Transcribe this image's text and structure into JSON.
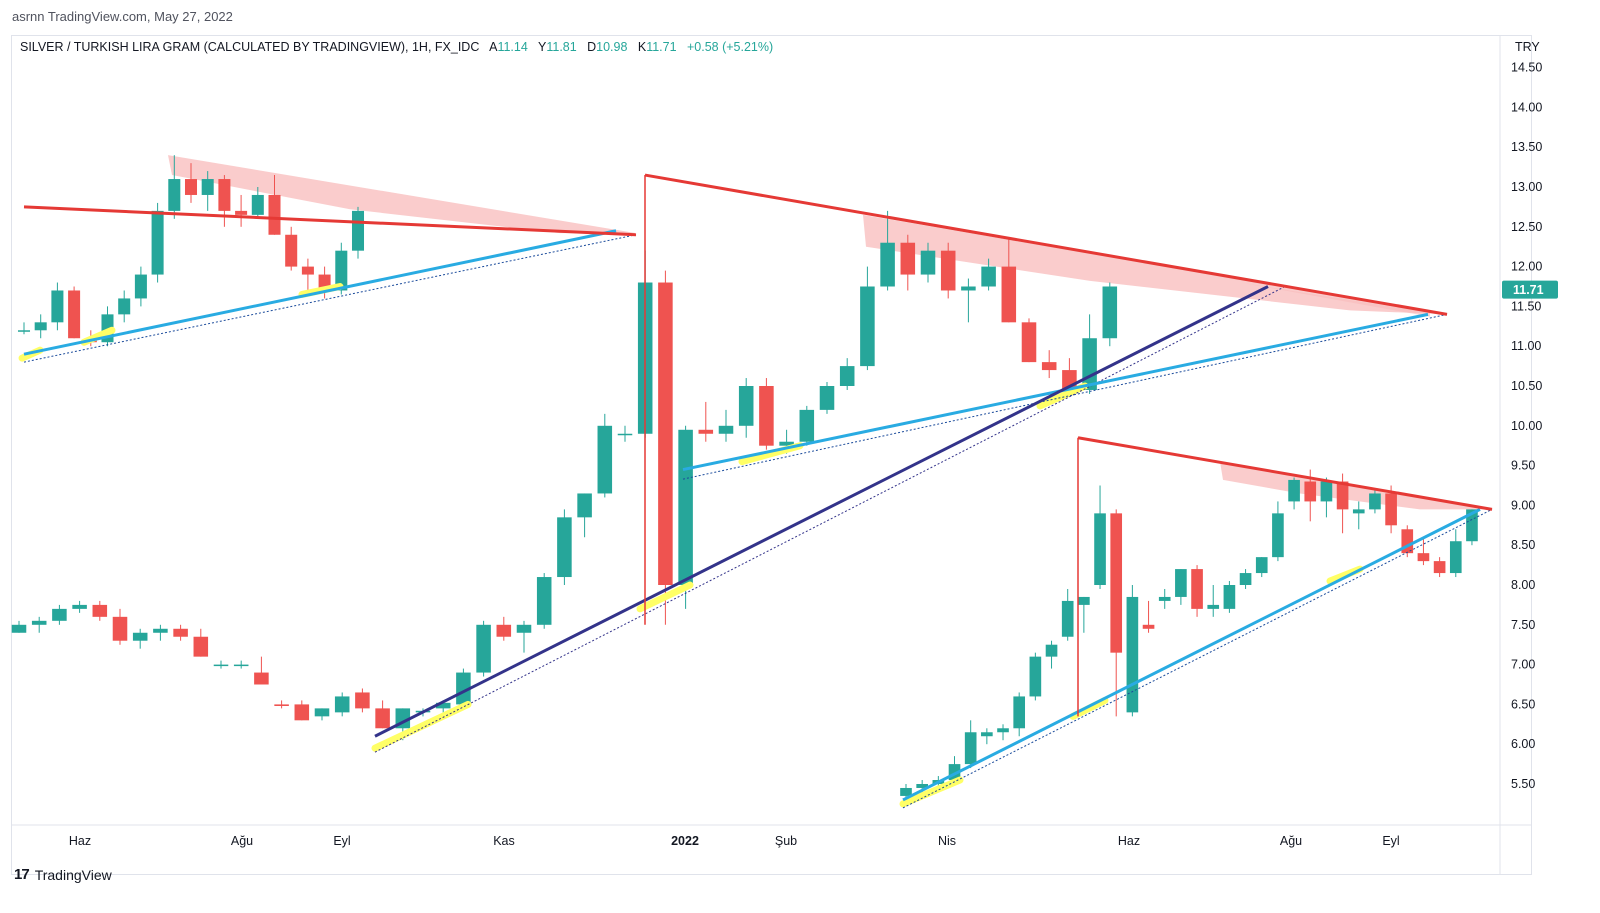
{
  "caption": "asrnn TradingView.com, May 27, 2022",
  "header": {
    "symbol": "SILVER / TURKISH LIRA GRAM (CALCULATED BY TRADINGVIEW), 1H, FX_IDC",
    "open_label": "A",
    "open": "11.14",
    "high_label": "Y",
    "high": "11.81",
    "low_label": "D",
    "low": "10.98",
    "close_label": "K",
    "close": "11.71",
    "change": "+0.58 (+5.21%)",
    "currency": "TRY"
  },
  "footer": {
    "brand": "TradingView",
    "logo_glyph": "17"
  },
  "colors": {
    "up": "#26a69a",
    "down": "#ef5350",
    "resistance": "#e53935",
    "support": "#29abe2",
    "trend": "#33338a",
    "touch": "#ffff66",
    "zone": "#f8bbbb"
  },
  "chart_data": {
    "type": "candlestick",
    "ylim": [
      5.0,
      14.75
    ],
    "y_ticks": [
      "14.50",
      "14.00",
      "13.50",
      "13.00",
      "12.50",
      "12.00",
      "11.50",
      "11.00",
      "10.50",
      "10.00",
      "9.50",
      "9.00",
      "8.50",
      "8.00",
      "7.50",
      "7.00",
      "6.50",
      "6.00",
      "5.50"
    ],
    "last_price_label": "11.71",
    "last_price": 11.71,
    "x_labels": [
      "Haz",
      "Ağu",
      "Eyl",
      "Kas",
      "2022",
      "Şub",
      "Nis",
      "Haz",
      "Ağu",
      "Eyl"
    ],
    "x_label_pos": [
      80,
      242,
      342,
      504,
      685,
      786,
      947,
      1129,
      1291,
      1391
    ],
    "panels": [
      {
        "name": "",
        "x_start": 24,
        "x_step": 16.7,
        "candles": [
          [
            11.2,
            11.3,
            11.15,
            11.2
          ],
          [
            11.2,
            11.4,
            11.1,
            11.3
          ],
          [
            11.3,
            11.8,
            11.2,
            11.7
          ],
          [
            11.7,
            11.75,
            11.1,
            11.1
          ],
          [
            11.1,
            11.2,
            11.0,
            11.05
          ],
          [
            11.05,
            11.5,
            11.0,
            11.4
          ],
          [
            11.4,
            11.7,
            11.3,
            11.6
          ],
          [
            11.6,
            12.0,
            11.5,
            11.9
          ],
          [
            11.9,
            12.8,
            11.8,
            12.7
          ],
          [
            12.7,
            13.4,
            12.6,
            13.1
          ],
          [
            13.1,
            13.3,
            12.8,
            12.9
          ],
          [
            12.9,
            13.2,
            12.7,
            13.1
          ],
          [
            13.1,
            13.15,
            12.5,
            12.7
          ],
          [
            12.7,
            12.9,
            12.5,
            12.65
          ],
          [
            12.65,
            13.0,
            12.6,
            12.9
          ],
          [
            12.9,
            13.15,
            12.4,
            12.4
          ],
          [
            12.4,
            12.5,
            11.95,
            12.0
          ],
          [
            12.0,
            12.1,
            11.7,
            11.9
          ],
          [
            11.9,
            12.0,
            11.6,
            11.7
          ],
          [
            11.7,
            12.3,
            11.65,
            12.2
          ],
          [
            12.2,
            12.75,
            12.1,
            12.7
          ]
        ],
        "resistance": [
          [
            24,
            12.75
          ],
          [
            636,
            12.4
          ]
        ],
        "support": [
          [
            24,
            10.9
          ],
          [
            616,
            12.45
          ]
        ],
        "dotted": [
          [
            24,
            10.8
          ],
          [
            636,
            12.4
          ]
        ],
        "zone": [
          [
            168,
            13.4
          ],
          [
            172,
            13.15
          ],
          [
            350,
            12.72
          ],
          [
            560,
            12.42
          ],
          [
            636,
            12.42
          ]
        ],
        "touches": [
          [
            [
              22,
              10.85
            ],
            [
              40,
              10.95
            ]
          ],
          [
            [
              84,
              11.05
            ],
            [
              112,
              11.2
            ]
          ],
          [
            [
              302,
              11.65
            ],
            [
              340,
              11.75
            ]
          ]
        ]
      },
      {
        "name": "",
        "x_start": 19,
        "x_step": 20.2,
        "candles": [
          [
            7.4,
            7.55,
            7.4,
            7.5
          ],
          [
            7.5,
            7.6,
            7.4,
            7.55
          ],
          [
            7.55,
            7.75,
            7.5,
            7.7
          ],
          [
            7.7,
            7.8,
            7.65,
            7.75
          ],
          [
            7.75,
            7.8,
            7.55,
            7.6
          ],
          [
            7.6,
            7.7,
            7.25,
            7.3
          ],
          [
            7.3,
            7.45,
            7.2,
            7.4
          ],
          [
            7.4,
            7.5,
            7.3,
            7.45
          ],
          [
            7.45,
            7.5,
            7.3,
            7.35
          ],
          [
            7.35,
            7.45,
            7.1,
            7.1
          ],
          [
            7.0,
            7.05,
            6.95,
            7.0
          ],
          [
            7.0,
            7.05,
            6.95,
            7.0
          ],
          [
            6.9,
            7.1,
            6.75,
            6.75
          ],
          [
            6.5,
            6.55,
            6.45,
            6.48
          ],
          [
            6.5,
            6.55,
            6.3,
            6.3
          ],
          [
            6.35,
            6.45,
            6.3,
            6.45
          ],
          [
            6.4,
            6.65,
            6.35,
            6.6
          ],
          [
            6.65,
            6.7,
            6.4,
            6.45
          ],
          [
            6.45,
            6.55,
            6.2,
            6.2
          ],
          [
            6.2,
            6.45,
            6.05,
            6.45
          ],
          [
            6.4,
            6.45,
            6.35,
            6.42
          ],
          [
            6.45,
            6.55,
            6.4,
            6.52
          ],
          [
            6.5,
            6.95,
            6.45,
            6.9
          ],
          [
            6.9,
            7.55,
            6.85,
            7.5
          ],
          [
            7.5,
            7.6,
            7.3,
            7.35
          ],
          [
            7.4,
            7.55,
            7.15,
            7.5
          ],
          [
            7.5,
            8.15,
            7.45,
            8.1
          ],
          [
            8.1,
            8.95,
            8.0,
            8.85
          ],
          [
            8.85,
            9.15,
            8.6,
            9.15
          ],
          [
            9.15,
            10.15,
            9.1,
            10.0
          ],
          [
            9.9,
            10.0,
            9.8,
            9.9
          ],
          [
            9.9,
            12.2,
            9.85,
            11.8
          ],
          [
            11.8,
            11.95,
            7.5,
            8.0
          ],
          [
            8.0,
            10.0,
            7.7,
            9.95
          ],
          [
            9.95,
            10.3,
            9.8,
            9.9
          ],
          [
            9.9,
            10.2,
            9.8,
            10.0
          ],
          [
            10.0,
            10.6,
            9.85,
            10.5
          ],
          [
            10.5,
            10.6,
            9.7,
            9.75
          ],
          [
            9.75,
            9.95,
            9.65,
            9.8
          ],
          [
            9.8,
            10.25,
            9.75,
            10.2
          ],
          [
            10.2,
            10.55,
            10.15,
            10.5
          ],
          [
            10.5,
            10.85,
            10.45,
            10.75
          ],
          [
            10.75,
            12.0,
            10.7,
            11.75
          ],
          [
            11.75,
            12.7,
            11.7,
            12.3
          ],
          [
            12.3,
            12.4,
            11.7,
            11.9
          ],
          [
            11.9,
            12.3,
            11.8,
            12.2
          ],
          [
            12.2,
            12.3,
            11.6,
            11.7
          ],
          [
            11.7,
            11.85,
            11.3,
            11.75
          ],
          [
            11.75,
            12.1,
            11.7,
            12.0
          ],
          [
            12.0,
            12.35,
            11.3,
            11.3
          ],
          [
            11.3,
            11.35,
            10.8,
            10.8
          ],
          [
            10.8,
            10.95,
            10.6,
            10.7
          ],
          [
            10.7,
            10.85,
            10.45,
            10.45
          ],
          [
            10.45,
            11.4,
            10.4,
            11.1
          ],
          [
            11.1,
            11.8,
            11.0,
            11.75
          ]
        ],
        "resistance": [
          [
            645,
            13.15
          ],
          [
            1447,
            11.4
          ]
        ],
        "resistance_drop": [
          [
            645,
            13.15
          ],
          [
            645,
            7.5
          ]
        ],
        "support": [
          [
            683,
            9.45
          ],
          [
            1428,
            11.4
          ]
        ],
        "dotted": [
          [
            683,
            9.33
          ],
          [
            1447,
            11.4
          ]
        ],
        "trend": [
          [
            375,
            6.1
          ],
          [
            1268,
            11.75
          ]
        ],
        "trend_dotted": [
          [
            375,
            5.9
          ],
          [
            1285,
            11.75
          ]
        ],
        "zone": [
          [
            863,
            12.65
          ],
          [
            866,
            12.25
          ],
          [
            1090,
            11.82
          ],
          [
            1350,
            11.45
          ],
          [
            1447,
            11.4
          ]
        ],
        "zone2": [
          [
            1240,
            11.8
          ],
          [
            1430,
            11.42
          ]
        ],
        "touches": [
          [
            [
              375,
              5.95
            ],
            [
              468,
              6.5
            ]
          ],
          [
            [
              640,
              7.7
            ],
            [
              690,
              8.0
            ]
          ],
          [
            [
              742,
              9.55
            ],
            [
              800,
              9.75
            ]
          ],
          [
            [
              1040,
              10.25
            ],
            [
              1085,
              10.5
            ]
          ]
        ]
      },
      {
        "name": "",
        "x_start": 906,
        "x_step": 16.17,
        "candles": [
          [
            5.35,
            5.5,
            5.3,
            5.45
          ],
          [
            5.45,
            5.55,
            5.35,
            5.5
          ],
          [
            5.5,
            5.6,
            5.4,
            5.55
          ],
          [
            5.55,
            5.85,
            5.5,
            5.75
          ],
          [
            5.75,
            6.3,
            5.7,
            6.15
          ],
          [
            6.1,
            6.2,
            6.0,
            6.15
          ],
          [
            6.15,
            6.25,
            6.05,
            6.2
          ],
          [
            6.2,
            6.65,
            6.1,
            6.6
          ],
          [
            6.6,
            7.15,
            6.55,
            7.1
          ],
          [
            7.1,
            7.3,
            6.95,
            7.25
          ],
          [
            7.35,
            7.95,
            7.3,
            7.8
          ],
          [
            7.75,
            7.85,
            7.4,
            7.85
          ],
          [
            8.0,
            9.25,
            7.95,
            8.9
          ],
          [
            8.9,
            8.95,
            6.35,
            7.15
          ],
          [
            6.4,
            8.0,
            6.35,
            7.85
          ],
          [
            7.5,
            7.8,
            7.4,
            7.45
          ],
          [
            7.8,
            7.95,
            7.7,
            7.85
          ],
          [
            7.85,
            8.2,
            7.75,
            8.2
          ],
          [
            8.2,
            8.25,
            7.6,
            7.7
          ],
          [
            7.7,
            8.0,
            7.6,
            7.75
          ],
          [
            7.7,
            8.05,
            7.65,
            8.0
          ],
          [
            8.0,
            8.2,
            7.95,
            8.15
          ],
          [
            8.15,
            8.35,
            8.1,
            8.35
          ],
          [
            8.35,
            9.05,
            8.3,
            8.9
          ],
          [
            9.05,
            9.35,
            8.95,
            9.32
          ],
          [
            9.3,
            9.45,
            8.8,
            9.05
          ],
          [
            9.05,
            9.35,
            8.85,
            9.3
          ],
          [
            9.3,
            9.4,
            8.65,
            8.95
          ],
          [
            8.9,
            9.05,
            8.7,
            8.95
          ],
          [
            8.95,
            9.2,
            8.9,
            9.15
          ],
          [
            9.15,
            9.25,
            8.65,
            8.75
          ],
          [
            8.7,
            8.75,
            8.35,
            8.4
          ],
          [
            8.4,
            8.6,
            8.25,
            8.3
          ],
          [
            8.3,
            8.35,
            8.1,
            8.15
          ],
          [
            8.15,
            8.7,
            8.1,
            8.55
          ],
          [
            8.55,
            8.95,
            8.5,
            8.95
          ]
        ],
        "resistance": [
          [
            1078,
            9.85
          ],
          [
            1492,
            8.95
          ]
        ],
        "resistance_drop": [
          [
            1078,
            9.85
          ],
          [
            1078,
            6.35
          ]
        ],
        "support": [
          [
            903,
            5.3
          ],
          [
            1480,
            8.95
          ]
        ],
        "dotted": [
          [
            903,
            5.2
          ],
          [
            1492,
            8.95
          ]
        ],
        "zone": [
          [
            1220,
            9.55
          ],
          [
            1223,
            9.32
          ],
          [
            1300,
            9.15
          ],
          [
            1420,
            8.95
          ],
          [
            1492,
            8.95
          ]
        ],
        "touches": [
          [
            [
              903,
              5.25
            ],
            [
              960,
              5.55
            ]
          ],
          [
            [
              1073,
              6.35
            ],
            [
              1105,
              6.55
            ]
          ],
          [
            [
              1330,
              8.05
            ],
            [
              1360,
              8.2
            ]
          ]
        ]
      }
    ]
  }
}
